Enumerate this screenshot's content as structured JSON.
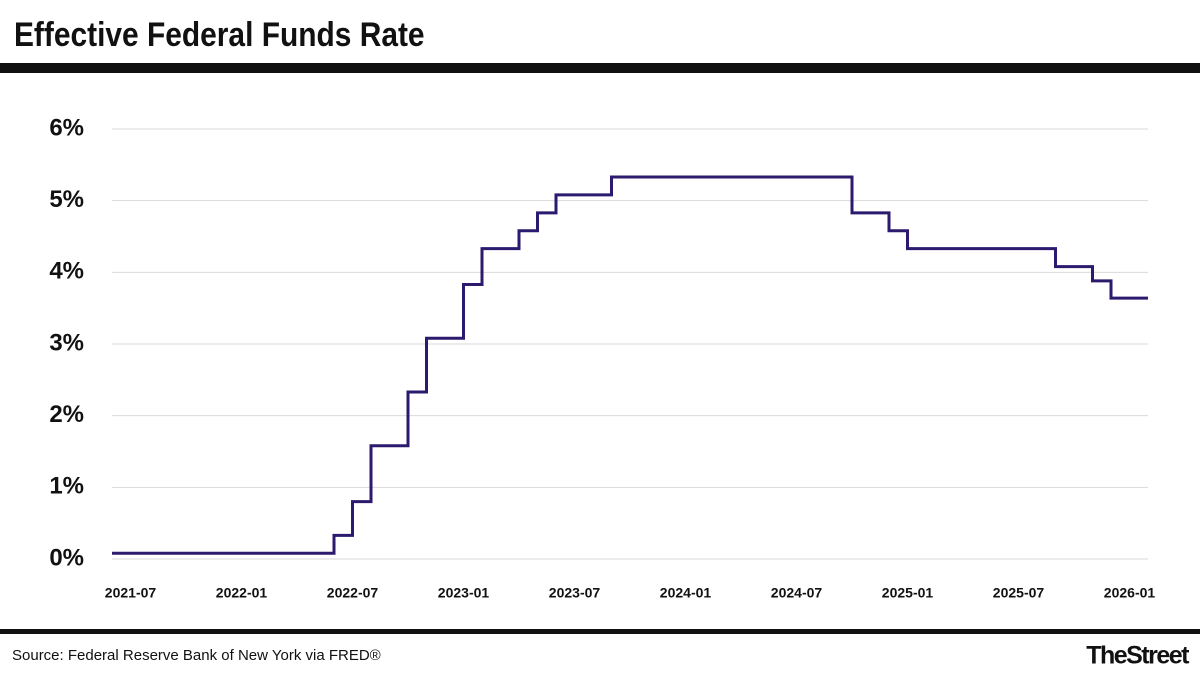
{
  "header": {
    "title": "Effective Federal Funds Rate"
  },
  "chart_data": {
    "type": "line",
    "step": "post",
    "x": [
      "2021-06",
      "2022-06",
      "2022-07",
      "2022-08",
      "2022-10",
      "2022-11",
      "2023-01",
      "2023-02",
      "2023-04",
      "2023-05",
      "2023-06",
      "2023-09",
      "2024-10",
      "2024-12",
      "2025-01",
      "2025-09",
      "2025-11",
      "2025-12",
      "2026-02"
    ],
    "series": [
      {
        "color": "#2c1a6e",
        "values": [
          0.08,
          0.33,
          0.8,
          1.58,
          2.33,
          3.08,
          3.83,
          4.33,
          4.58,
          4.83,
          5.08,
          5.33,
          4.83,
          4.58,
          4.33,
          4.08,
          3.88,
          3.64,
          3.64
        ]
      }
    ],
    "xlim": [
      "2021-06",
      "2026-02"
    ],
    "xticks": [
      "2021-07",
      "2022-01",
      "2022-07",
      "2023-01",
      "2023-07",
      "2024-01",
      "2024-07",
      "2025-01",
      "2025-07",
      "2026-01"
    ],
    "ylim": [
      0,
      6
    ],
    "yticks": [
      {
        "value": 0,
        "label": "0%"
      },
      {
        "value": 1,
        "label": "1%"
      },
      {
        "value": 2,
        "label": "2%"
      },
      {
        "value": 3,
        "label": "3%"
      },
      {
        "value": 4,
        "label": "4%"
      },
      {
        "value": 5,
        "label": "5%"
      },
      {
        "value": 6,
        "label": "6%"
      }
    ],
    "grid": true
  },
  "footer": {
    "source": "Source: Federal Reserve Bank of New York via FRED®",
    "logo": "TheStreet"
  }
}
